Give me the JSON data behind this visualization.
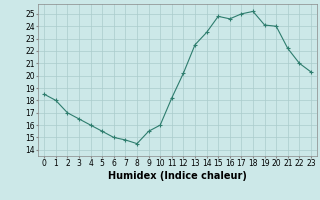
{
  "x": [
    0,
    1,
    2,
    3,
    4,
    5,
    6,
    7,
    8,
    9,
    10,
    11,
    12,
    13,
    14,
    15,
    16,
    17,
    18,
    19,
    20,
    21,
    22,
    23
  ],
  "y": [
    18.5,
    18.0,
    17.0,
    16.5,
    16.0,
    15.5,
    15.0,
    14.8,
    14.5,
    15.5,
    16.0,
    18.2,
    20.2,
    22.5,
    23.5,
    24.8,
    24.6,
    25.0,
    25.2,
    24.1,
    24.0,
    22.2,
    21.0,
    20.3
  ],
  "line_color": "#2e7d6e",
  "marker": "+",
  "bg_color": "#cce8e8",
  "grid_color": "#aacccc",
  "xlabel": "Humidex (Indice chaleur)",
  "ylabel_ticks": [
    14,
    15,
    16,
    17,
    18,
    19,
    20,
    21,
    22,
    23,
    24,
    25
  ],
  "xlim": [
    -0.5,
    23.5
  ],
  "ylim": [
    13.5,
    25.8
  ],
  "xtick_labels": [
    "0",
    "1",
    "2",
    "3",
    "4",
    "5",
    "6",
    "7",
    "8",
    "9",
    "10",
    "11",
    "12",
    "13",
    "14",
    "15",
    "16",
    "17",
    "18",
    "19",
    "20",
    "21",
    "22",
    "23"
  ],
  "tick_fontsize": 5.5,
  "xlabel_fontsize": 7
}
